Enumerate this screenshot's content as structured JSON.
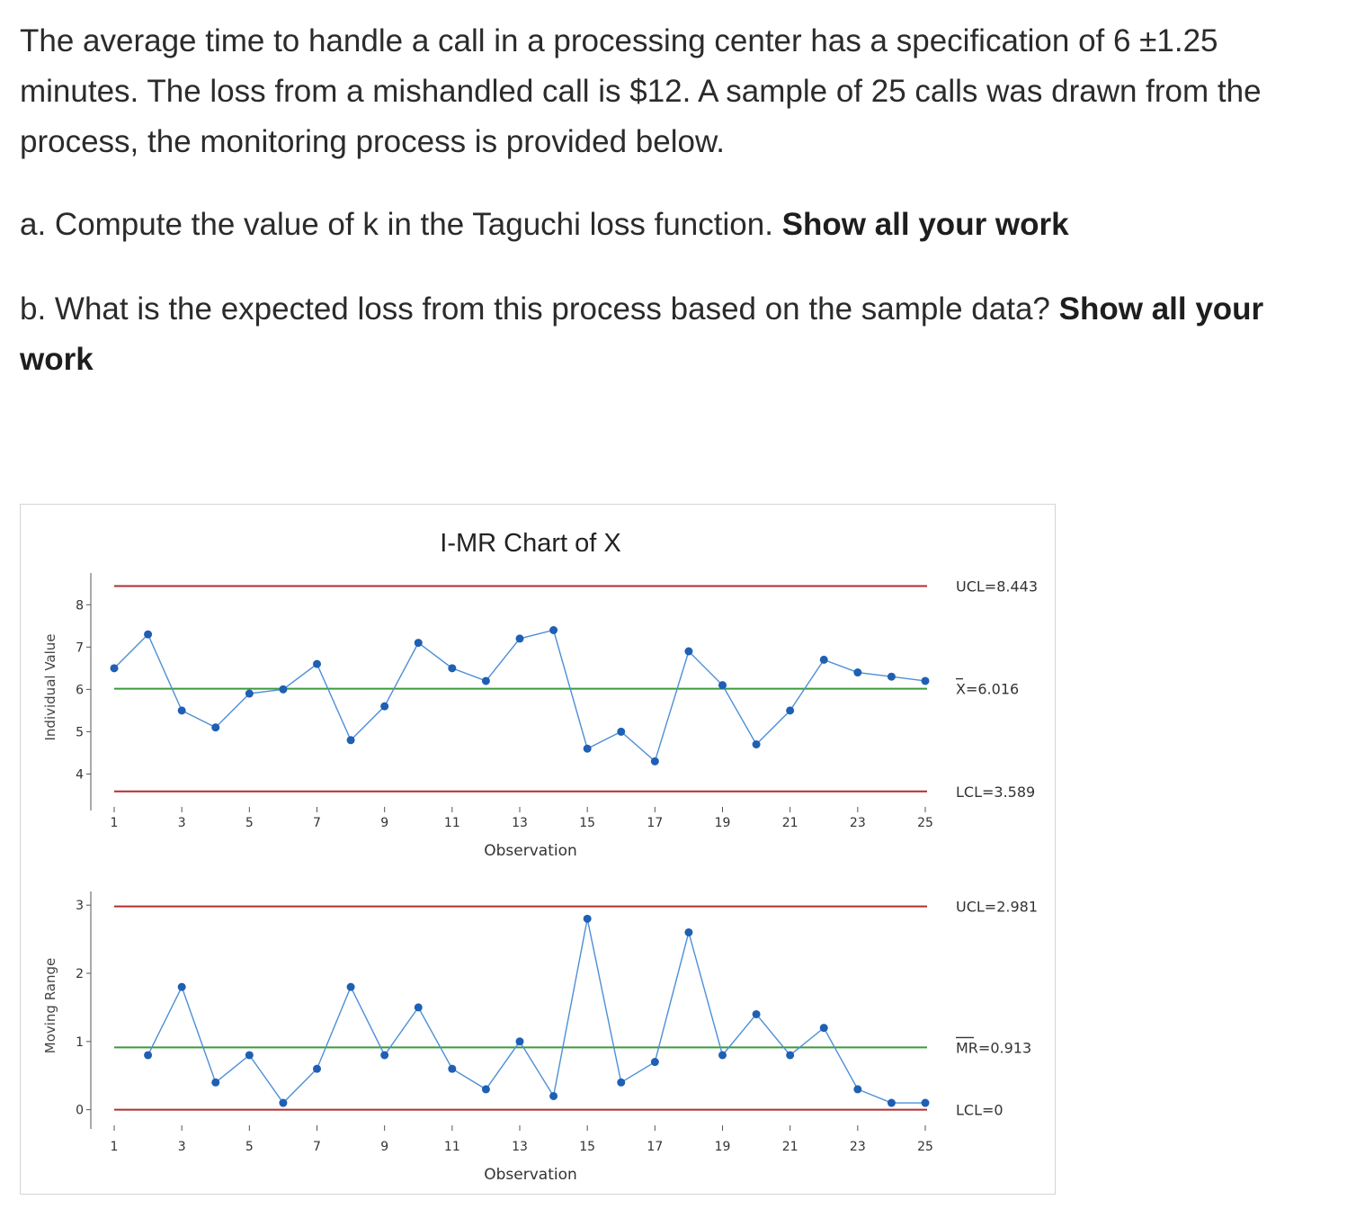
{
  "question": {
    "intro": "The average time to handle a call in a processing center has a specification of 6 ±1.25 minutes. The loss from a mishandled call is $12. A sample of 25 calls was drawn from the process, the monitoring process is provided below.",
    "a_text": "a. Compute the value of k in the Taguchi loss function.",
    "a_bold": "Show all your work",
    "b_text": "b. What is the expected loss from this process based on the sample data?",
    "b_bold": "Show all your work"
  },
  "colors": {
    "control_limit": "#b22d2d",
    "center_line": "#3a9a3a",
    "series": "#1f5fb4",
    "series_line": "#4d8fd6",
    "axis": "#555555"
  },
  "chart_data": [
    {
      "type": "line",
      "title": "I-MR Chart of X",
      "xlabel": "Observation",
      "ylabel": "Individual Value",
      "x": [
        1,
        2,
        3,
        4,
        5,
        6,
        7,
        8,
        9,
        10,
        11,
        12,
        13,
        14,
        15,
        16,
        17,
        18,
        19,
        20,
        21,
        22,
        23,
        24,
        25
      ],
      "x_ticks": [
        1,
        3,
        5,
        7,
        9,
        11,
        13,
        15,
        17,
        19,
        21,
        23,
        25
      ],
      "y_ticks": [
        4,
        5,
        6,
        7,
        8
      ],
      "ylim": [
        3.35,
        8.75
      ],
      "values": [
        6.5,
        7.3,
        5.5,
        5.1,
        5.9,
        6.0,
        6.6,
        4.8,
        5.6,
        7.1,
        6.5,
        6.2,
        7.2,
        7.4,
        4.6,
        5.0,
        4.3,
        6.9,
        6.1,
        4.7,
        5.5,
        6.7,
        6.4,
        6.3,
        6.2
      ],
      "ucl": 8.443,
      "center": 6.016,
      "lcl": 3.589,
      "ucl_label": "UCL=8.443",
      "center_label": "X=6.016",
      "lcl_label": "LCL=3.589",
      "grid": false
    },
    {
      "type": "line",
      "xlabel": "Observation",
      "ylabel": "Moving Range",
      "x": [
        2,
        3,
        4,
        5,
        6,
        7,
        8,
        9,
        10,
        11,
        12,
        13,
        14,
        15,
        16,
        17,
        18,
        19,
        20,
        21,
        22,
        23,
        24,
        25
      ],
      "x_ticks": [
        1,
        3,
        5,
        7,
        9,
        11,
        13,
        15,
        17,
        19,
        21,
        23,
        25
      ],
      "y_ticks": [
        0,
        1,
        2,
        3
      ],
      "ylim": [
        -0.15,
        3.2
      ],
      "values": [
        0.8,
        1.8,
        0.4,
        0.8,
        0.1,
        0.6,
        1.8,
        0.8,
        1.5,
        0.6,
        0.3,
        1.0,
        0.2,
        2.8,
        0.4,
        0.7,
        2.6,
        0.8,
        1.4,
        0.8,
        1.2,
        0.3,
        0.1,
        0.1
      ],
      "ucl": 2.981,
      "center": 0.913,
      "lcl": 0,
      "ucl_label": "UCL=2.981",
      "center_label": "MR=0.913",
      "lcl_label": "LCL=0",
      "grid": false
    }
  ]
}
